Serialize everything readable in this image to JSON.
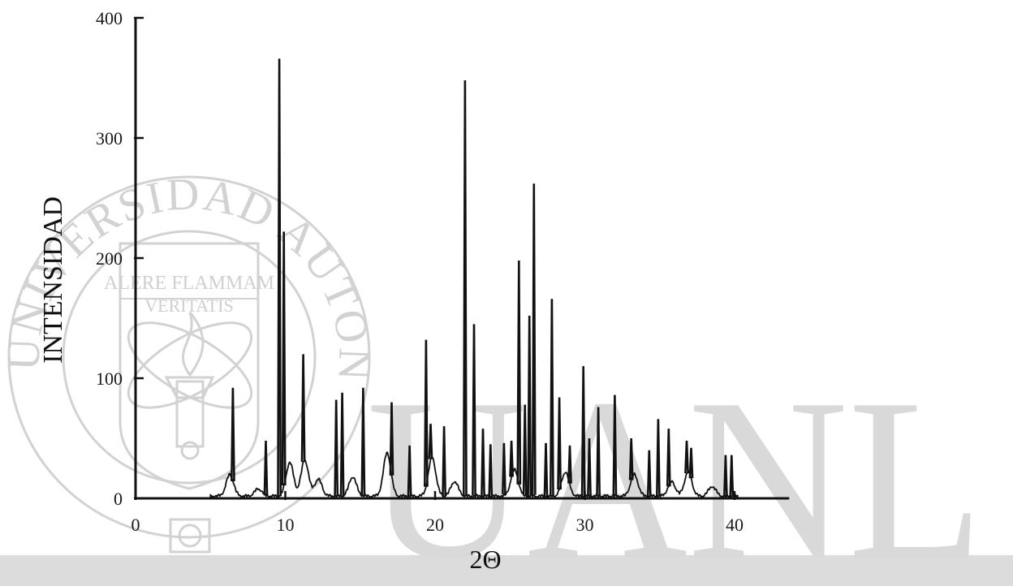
{
  "watermark": {
    "seal_text": "UNIVERSIDAD AUTONOMA DE NUEVO LEON",
    "motto_line1": "ALERE FLAMMAM",
    "motto_line2": "VERITATIS",
    "letters": "UANL",
    "color": "#d4d4d4"
  },
  "chart_data": {
    "type": "line",
    "xlabel": "2Θ",
    "ylabel": "INTENSIDAD",
    "xlim": [
      0,
      45
    ],
    "ylim": [
      0,
      400
    ],
    "x_ticks": [
      "0",
      "10",
      "20",
      "30",
      "40"
    ],
    "y_ticks": [
      "0",
      "100",
      "200",
      "300",
      "400"
    ],
    "grid": false,
    "line_color": "#111111",
    "peaks": [
      {
        "x": 6.5,
        "y": 92
      },
      {
        "x": 8.7,
        "y": 48
      },
      {
        "x": 9.6,
        "y": 366
      },
      {
        "x": 9.9,
        "y": 222
      },
      {
        "x": 11.2,
        "y": 120
      },
      {
        "x": 13.4,
        "y": 82
      },
      {
        "x": 13.8,
        "y": 88
      },
      {
        "x": 15.2,
        "y": 92
      },
      {
        "x": 17.1,
        "y": 80
      },
      {
        "x": 18.3,
        "y": 44
      },
      {
        "x": 19.4,
        "y": 132
      },
      {
        "x": 19.7,
        "y": 62
      },
      {
        "x": 20.6,
        "y": 60
      },
      {
        "x": 22.0,
        "y": 348
      },
      {
        "x": 22.6,
        "y": 145
      },
      {
        "x": 23.2,
        "y": 58
      },
      {
        "x": 23.7,
        "y": 45
      },
      {
        "x": 24.6,
        "y": 46
      },
      {
        "x": 25.1,
        "y": 48
      },
      {
        "x": 25.6,
        "y": 198
      },
      {
        "x": 26.0,
        "y": 78
      },
      {
        "x": 26.3,
        "y": 152
      },
      {
        "x": 26.6,
        "y": 262
      },
      {
        "x": 27.4,
        "y": 46
      },
      {
        "x": 27.8,
        "y": 166
      },
      {
        "x": 28.3,
        "y": 84
      },
      {
        "x": 29.0,
        "y": 44
      },
      {
        "x": 29.9,
        "y": 110
      },
      {
        "x": 30.3,
        "y": 50
      },
      {
        "x": 30.9,
        "y": 76
      },
      {
        "x": 32.0,
        "y": 86
      },
      {
        "x": 33.1,
        "y": 50
      },
      {
        "x": 34.3,
        "y": 40
      },
      {
        "x": 34.9,
        "y": 66
      },
      {
        "x": 35.6,
        "y": 58
      },
      {
        "x": 36.8,
        "y": 48
      },
      {
        "x": 37.1,
        "y": 42
      },
      {
        "x": 39.4,
        "y": 36
      },
      {
        "x": 39.8,
        "y": 36
      }
    ],
    "background_humps": [
      {
        "x": 6.3,
        "y": 18
      },
      {
        "x": 8.2,
        "y": 6
      },
      {
        "x": 10.3,
        "y": 28
      },
      {
        "x": 11.3,
        "y": 30
      },
      {
        "x": 12.2,
        "y": 14
      },
      {
        "x": 14.5,
        "y": 16
      },
      {
        "x": 16.8,
        "y": 36
      },
      {
        "x": 19.8,
        "y": 32
      },
      {
        "x": 21.3,
        "y": 12
      },
      {
        "x": 25.3,
        "y": 22
      },
      {
        "x": 28.7,
        "y": 20
      },
      {
        "x": 33.3,
        "y": 18
      },
      {
        "x": 35.8,
        "y": 12
      },
      {
        "x": 36.9,
        "y": 20
      },
      {
        "x": 38.5,
        "y": 8
      }
    ]
  }
}
